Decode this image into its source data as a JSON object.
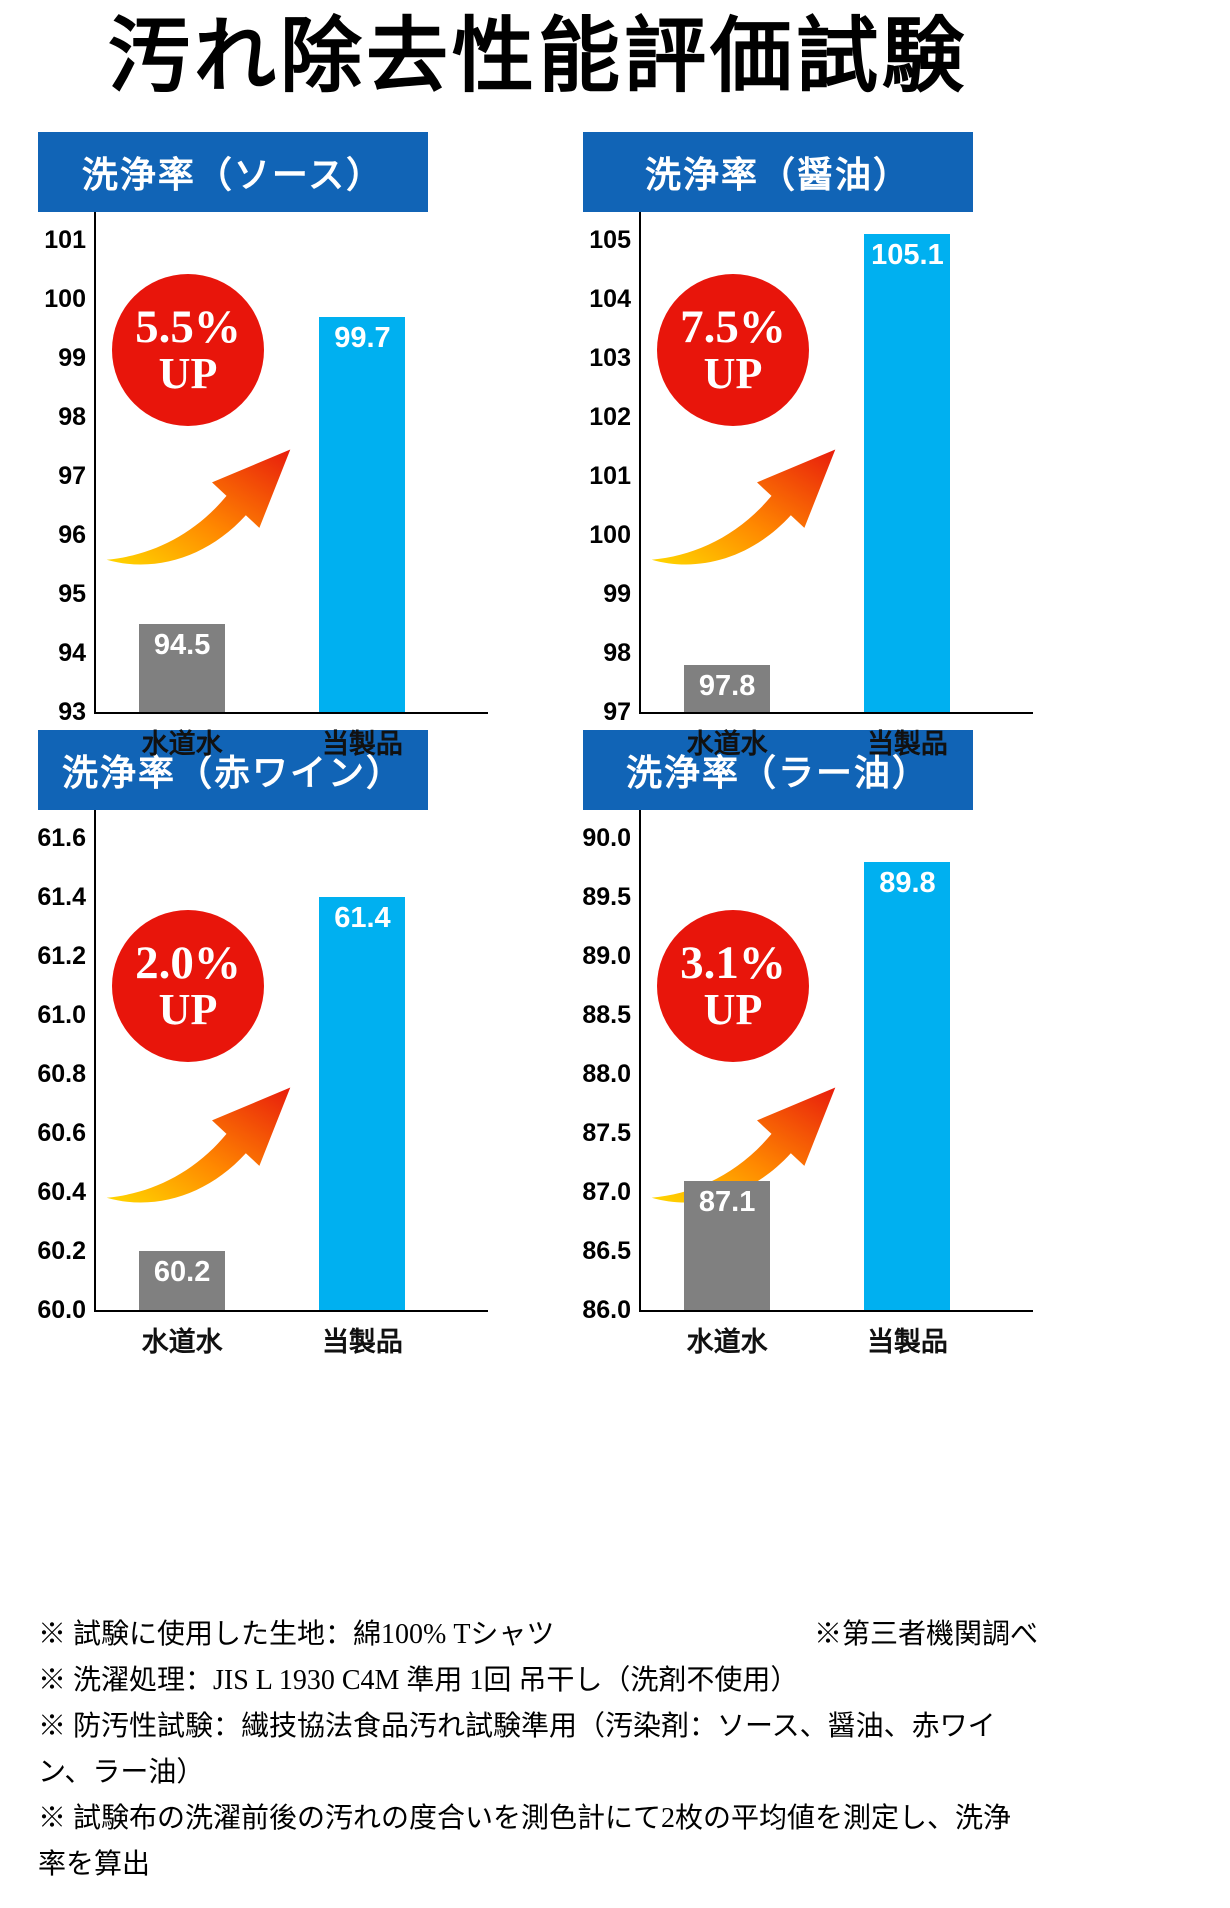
{
  "page": {
    "title": "汚れ除去性能評価試験",
    "notes": [
      "※ 試験に使用した生地：綿100% Tシャツ",
      "※ 洗濯処理：JIS L 1930 C4M 準用 1回 吊干し（洗剤不使用）",
      "※ 防汚性試験：繊技協法食品汚れ試験準用（汚染剤：ソース、醤油、赤ワイン、ラー油）",
      "※ 試験布の洗濯前後の汚れの度合いを測色計にて2枚の平均値を測定し、洗浄率を算出"
    ],
    "note_right": "※第三者機関調べ"
  },
  "colors": {
    "banner_blue": "#1164b6",
    "bar_gray": "#808080",
    "bar_cyan": "#00b0f0",
    "circle_red": "#e8150b",
    "arrow_yellow": "#ffd800",
    "arrow_orange": "#ff8800",
    "arrow_red": "#e81c0c"
  },
  "chart_data": [
    {
      "type": "bar",
      "title": "洗浄率（ソース）",
      "categories": [
        "水道水",
        "当製品"
      ],
      "values": [
        94.5,
        99.7
      ],
      "value_labels": [
        "94.5",
        "99.7"
      ],
      "ylim": [
        93,
        101
      ],
      "yticks": [
        "101",
        "100",
        "99",
        "98",
        "97",
        "96",
        "95",
        "94",
        "93"
      ],
      "badge": {
        "percent": "5.5%",
        "label": "UP"
      }
    },
    {
      "type": "bar",
      "title": "洗浄率（醤油）",
      "categories": [
        "水道水",
        "当製品"
      ],
      "values": [
        97.8,
        105.1
      ],
      "value_labels": [
        "97.8",
        "105.1"
      ],
      "ylim": [
        97,
        105
      ],
      "yticks": [
        "105",
        "104",
        "103",
        "102",
        "101",
        "100",
        "99",
        "98",
        "97"
      ],
      "badge": {
        "percent": "7.5%",
        "label": "UP"
      }
    },
    {
      "type": "bar",
      "title": "洗浄率（赤ワイン）",
      "categories": [
        "水道水",
        "当製品"
      ],
      "values": [
        60.2,
        61.4
      ],
      "value_labels": [
        "60.2",
        "61.4"
      ],
      "ylim": [
        60.0,
        61.6
      ],
      "yticks": [
        "61.6",
        "61.4",
        "61.2",
        "61.0",
        "60.8",
        "60.6",
        "60.4",
        "60.2",
        "60.0"
      ],
      "badge": {
        "percent": "2.0%",
        "label": "UP"
      }
    },
    {
      "type": "bar",
      "title": "洗浄率（ラー油）",
      "categories": [
        "水道水",
        "当製品"
      ],
      "values": [
        87.1,
        89.8
      ],
      "value_labels": [
        "87.1",
        "89.8"
      ],
      "ylim": [
        86.0,
        90.0
      ],
      "yticks": [
        "90.0",
        "89.5",
        "89.0",
        "88.5",
        "88.0",
        "87.5",
        "87.0",
        "86.5",
        "86.0"
      ],
      "badge": {
        "percent": "3.1%",
        "label": "UP"
      }
    }
  ]
}
